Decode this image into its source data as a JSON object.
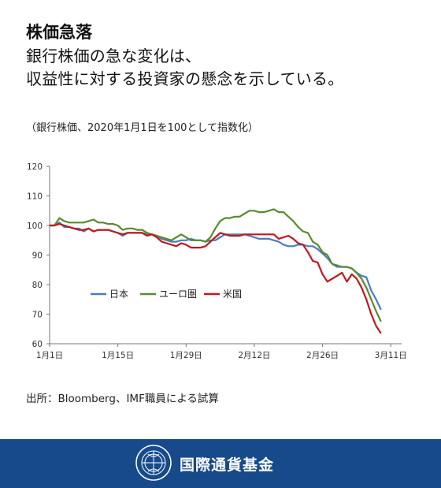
{
  "header": {
    "title": "株価急落",
    "subtitle_line1": "銀行株価の急な変化は、",
    "subtitle_line2": "収益性に対する投資家の懸念を示している。",
    "note": "（銀行株価、2020年1月1日を100として指数化）"
  },
  "source": "出所：Bloomberg、IMF職員による試算",
  "footer": {
    "org_name": "国際通貨基金",
    "seal_icon": "imf-seal-icon"
  },
  "colors": {
    "japan": "#4a7ebf",
    "euro": "#5a8a2e",
    "us": "#c0181e",
    "footer_bg": "#174a8b"
  },
  "chart_data": {
    "type": "line",
    "x_start": "2020-01-01",
    "x_ticks": [
      "1月1日",
      "1月15日",
      "1月29日",
      "2月12日",
      "2月26日",
      "3月11日"
    ],
    "ylim": [
      60,
      120
    ],
    "y_ticks": [
      60,
      70,
      80,
      90,
      100,
      110,
      120
    ],
    "grid": false,
    "legend_position": "center-left",
    "series": [
      {
        "name": "日本",
        "color_key": "japan",
        "points": [
          [
            0,
            100
          ],
          [
            1,
            100
          ],
          [
            2,
            101
          ],
          [
            3,
            99.5
          ],
          [
            4,
            99.5
          ],
          [
            5,
            99
          ],
          [
            6,
            99
          ],
          [
            7,
            98
          ],
          [
            8,
            99
          ],
          [
            9,
            98
          ],
          [
            10,
            98.5
          ],
          [
            11,
            98.5
          ],
          [
            12,
            98.5
          ],
          [
            13,
            98
          ],
          [
            14,
            97.5
          ],
          [
            15,
            96.5
          ],
          [
            16,
            97.5
          ],
          [
            17,
            97.5
          ],
          [
            18,
            97.5
          ],
          [
            19,
            97.5
          ],
          [
            20,
            97
          ],
          [
            21,
            97
          ],
          [
            22,
            96.5
          ],
          [
            23,
            95.5
          ],
          [
            24,
            95
          ],
          [
            25,
            94.5
          ],
          [
            26,
            94.5
          ],
          [
            27,
            95
          ],
          [
            28,
            95
          ],
          [
            29,
            95.5
          ],
          [
            30,
            95
          ],
          [
            31,
            95
          ],
          [
            32,
            94.5
          ],
          [
            33,
            95
          ],
          [
            34,
            95
          ],
          [
            35,
            96
          ],
          [
            36,
            97
          ],
          [
            37,
            97
          ],
          [
            38,
            97
          ],
          [
            39,
            97
          ],
          [
            40,
            97
          ],
          [
            41,
            96.5
          ],
          [
            42,
            96
          ],
          [
            43,
            95.5
          ],
          [
            44,
            95.5
          ],
          [
            45,
            95.5
          ],
          [
            46,
            95
          ],
          [
            47,
            94.5
          ],
          [
            48,
            93.5
          ],
          [
            49,
            93
          ],
          [
            50,
            93
          ],
          [
            51,
            93.5
          ],
          [
            52,
            93.5
          ],
          [
            53,
            93
          ],
          [
            54,
            93
          ],
          [
            55,
            92
          ],
          [
            56,
            90.5
          ],
          [
            57,
            89
          ],
          [
            58,
            87
          ],
          [
            59,
            86
          ],
          [
            60,
            86
          ],
          [
            61,
            86
          ],
          [
            62,
            85.5
          ],
          [
            63,
            84
          ],
          [
            64,
            83
          ],
          [
            65,
            82.5
          ],
          [
            66,
            78
          ],
          [
            67,
            75
          ],
          [
            68,
            71.5
          ]
        ]
      },
      {
        "name": "ユーロ圏",
        "color_key": "euro",
        "points": [
          [
            0,
            100
          ],
          [
            1,
            100
          ],
          [
            2,
            102.5
          ],
          [
            3,
            101.5
          ],
          [
            4,
            101
          ],
          [
            5,
            101
          ],
          [
            6,
            101
          ],
          [
            7,
            101
          ],
          [
            8,
            101.5
          ],
          [
            9,
            102
          ],
          [
            10,
            101
          ],
          [
            11,
            101
          ],
          [
            12,
            100.5
          ],
          [
            13,
            100.5
          ],
          [
            14,
            100
          ],
          [
            15,
            98.5
          ],
          [
            16,
            99
          ],
          [
            17,
            99
          ],
          [
            18,
            98.5
          ],
          [
            19,
            98.5
          ],
          [
            20,
            97.5
          ],
          [
            21,
            97
          ],
          [
            22,
            96.5
          ],
          [
            23,
            96
          ],
          [
            24,
            95.5
          ],
          [
            25,
            95
          ],
          [
            26,
            96
          ],
          [
            27,
            97
          ],
          [
            28,
            96
          ],
          [
            29,
            95
          ],
          [
            30,
            95
          ],
          [
            31,
            95
          ],
          [
            32,
            94.5
          ],
          [
            33,
            96
          ],
          [
            34,
            99
          ],
          [
            35,
            101.5
          ],
          [
            36,
            102.5
          ],
          [
            37,
            102.5
          ],
          [
            38,
            103
          ],
          [
            39,
            103
          ],
          [
            40,
            104
          ],
          [
            41,
            105
          ],
          [
            42,
            105
          ],
          [
            43,
            104.5
          ],
          [
            44,
            104.5
          ],
          [
            45,
            105
          ],
          [
            46,
            105.5
          ],
          [
            47,
            104.5
          ],
          [
            48,
            104.5
          ],
          [
            49,
            103
          ],
          [
            50,
            101.5
          ],
          [
            51,
            99.5
          ],
          [
            52,
            98
          ],
          [
            53,
            97.5
          ],
          [
            54,
            94.5
          ],
          [
            55,
            93.5
          ],
          [
            56,
            91
          ],
          [
            57,
            90
          ],
          [
            58,
            87
          ],
          [
            59,
            86.5
          ],
          [
            60,
            86
          ],
          [
            61,
            86
          ],
          [
            62,
            85.5
          ],
          [
            63,
            84
          ],
          [
            64,
            82
          ],
          [
            65,
            79
          ],
          [
            66,
            75
          ],
          [
            67,
            71
          ],
          [
            68,
            67.5
          ]
        ]
      },
      {
        "name": "米国",
        "color_key": "us",
        "points": [
          [
            0,
            100
          ],
          [
            1,
            100
          ],
          [
            2,
            100.5
          ],
          [
            3,
            100
          ],
          [
            4,
            99.5
          ],
          [
            5,
            99
          ],
          [
            6,
            98.5
          ],
          [
            7,
            98.5
          ],
          [
            8,
            99
          ],
          [
            9,
            98
          ],
          [
            10,
            98.5
          ],
          [
            11,
            98.5
          ],
          [
            12,
            98.5
          ],
          [
            13,
            98
          ],
          [
            14,
            97.5
          ],
          [
            15,
            97
          ],
          [
            16,
            97.5
          ],
          [
            17,
            97.5
          ],
          [
            18,
            97.5
          ],
          [
            19,
            97.5
          ],
          [
            20,
            96.5
          ],
          [
            21,
            97
          ],
          [
            22,
            96
          ],
          [
            23,
            94.5
          ],
          [
            24,
            94
          ],
          [
            25,
            93.5
          ],
          [
            26,
            93
          ],
          [
            27,
            94
          ],
          [
            28,
            93.5
          ],
          [
            29,
            92.5
          ],
          [
            30,
            92.5
          ],
          [
            31,
            92.5
          ],
          [
            32,
            93
          ],
          [
            33,
            94.5
          ],
          [
            34,
            96
          ],
          [
            35,
            97.5
          ],
          [
            36,
            97
          ],
          [
            37,
            96.5
          ],
          [
            38,
            96.5
          ],
          [
            39,
            96.5
          ],
          [
            40,
            97
          ],
          [
            41,
            97
          ],
          [
            42,
            97
          ],
          [
            43,
            97
          ],
          [
            44,
            97
          ],
          [
            45,
            97
          ],
          [
            46,
            97
          ],
          [
            47,
            95.5
          ],
          [
            48,
            96
          ],
          [
            49,
            96.5
          ],
          [
            50,
            95.5
          ],
          [
            51,
            94
          ],
          [
            52,
            93.5
          ],
          [
            53,
            91
          ],
          [
            54,
            88
          ],
          [
            55,
            87.5
          ],
          [
            56,
            83.5
          ],
          [
            57,
            81
          ],
          [
            58,
            82
          ],
          [
            59,
            83
          ],
          [
            60,
            84
          ],
          [
            61,
            81
          ],
          [
            62,
            83.5
          ],
          [
            63,
            82
          ],
          [
            64,
            79
          ],
          [
            65,
            75
          ],
          [
            66,
            70
          ],
          [
            67,
            66
          ],
          [
            68,
            63.5
          ]
        ]
      }
    ]
  }
}
